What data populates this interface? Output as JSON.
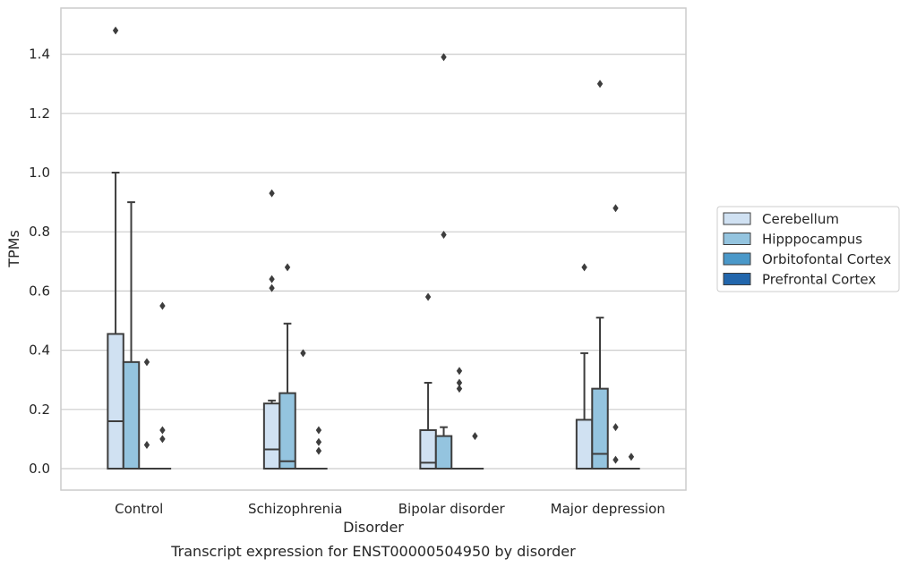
{
  "chart_data": {
    "type": "box",
    "caption": "Transcript expression for ENST00000504950 by disorder",
    "xlabel": "Disorder",
    "ylabel": "TPMs",
    "ylim": [
      -0.07,
      1.55
    ],
    "yticks": [
      "0.0",
      "0.2",
      "0.4",
      "0.6",
      "0.8",
      "1.0",
      "1.2",
      "1.4"
    ],
    "grid": "horizontal",
    "legend_position": "right",
    "categories": [
      "Control",
      "Schizophrenia",
      "Bipolar disorder",
      "Major depression"
    ],
    "series": [
      {
        "name": "Cerebellum",
        "color": "#d0e1f2",
        "boxes": [
          {
            "q1": 0.0,
            "median": 0.16,
            "q3": 0.455,
            "whisker_low": 0.0,
            "whisker_high": 1.0,
            "outliers": [
              1.48
            ]
          },
          {
            "q1": 0.0,
            "median": 0.065,
            "q3": 0.22,
            "whisker_low": 0.0,
            "whisker_high": 0.23,
            "outliers": [
              0.61,
              0.64,
              0.93
            ]
          },
          {
            "q1": 0.0,
            "median": 0.02,
            "q3": 0.13,
            "whisker_low": 0.0,
            "whisker_high": 0.29,
            "outliers": [
              0.58
            ]
          },
          {
            "q1": 0.0,
            "median": 0.0,
            "q3": 0.165,
            "whisker_low": 0.0,
            "whisker_high": 0.39,
            "outliers": [
              0.68
            ]
          }
        ]
      },
      {
        "name": "Hipppocampus",
        "color": "#94c4df",
        "boxes": [
          {
            "q1": 0.0,
            "median": 0.0,
            "q3": 0.36,
            "whisker_low": 0.0,
            "whisker_high": 0.9,
            "outliers": []
          },
          {
            "q1": 0.0,
            "median": 0.025,
            "q3": 0.255,
            "whisker_low": 0.0,
            "whisker_high": 0.49,
            "outliers": [
              0.68
            ]
          },
          {
            "q1": 0.0,
            "median": 0.0,
            "q3": 0.11,
            "whisker_low": 0.0,
            "whisker_high": 0.14,
            "outliers": [
              0.79,
              1.39
            ]
          },
          {
            "q1": 0.0,
            "median": 0.05,
            "q3": 0.27,
            "whisker_low": 0.0,
            "whisker_high": 0.51,
            "outliers": [
              1.3
            ]
          }
        ]
      },
      {
        "name": "Orbitofontal Cortex",
        "color": "#4a98c9",
        "boxes": [
          {
            "q1": 0.0,
            "median": 0.0,
            "q3": 0.0,
            "whisker_low": 0.0,
            "whisker_high": 0.0,
            "outliers": [
              0.08,
              0.36
            ]
          },
          {
            "q1": 0.0,
            "median": 0.0,
            "q3": 0.0,
            "whisker_low": 0.0,
            "whisker_high": 0.0,
            "outliers": [
              0.39
            ]
          },
          {
            "q1": 0.0,
            "median": 0.0,
            "q3": 0.0,
            "whisker_low": 0.0,
            "whisker_high": 0.0,
            "outliers": [
              0.27,
              0.29,
              0.33
            ]
          },
          {
            "q1": 0.0,
            "median": 0.0,
            "q3": 0.0,
            "whisker_low": 0.0,
            "whisker_high": 0.0,
            "outliers": [
              0.03,
              0.14,
              0.88
            ]
          }
        ]
      },
      {
        "name": "Prefrontal Cortex",
        "color": "#2266ac",
        "boxes": [
          {
            "q1": 0.0,
            "median": 0.0,
            "q3": 0.0,
            "whisker_low": 0.0,
            "whisker_high": 0.0,
            "outliers": [
              0.1,
              0.13,
              0.55
            ]
          },
          {
            "q1": 0.0,
            "median": 0.0,
            "q3": 0.0,
            "whisker_low": 0.0,
            "whisker_high": 0.0,
            "outliers": [
              0.06,
              0.09,
              0.13
            ]
          },
          {
            "q1": 0.0,
            "median": 0.0,
            "q3": 0.0,
            "whisker_low": 0.0,
            "whisker_high": 0.0,
            "outliers": [
              0.11
            ]
          },
          {
            "q1": 0.0,
            "median": 0.0,
            "q3": 0.0,
            "whisker_low": 0.0,
            "whisker_high": 0.0,
            "outliers": [
              0.04
            ]
          }
        ]
      }
    ]
  }
}
